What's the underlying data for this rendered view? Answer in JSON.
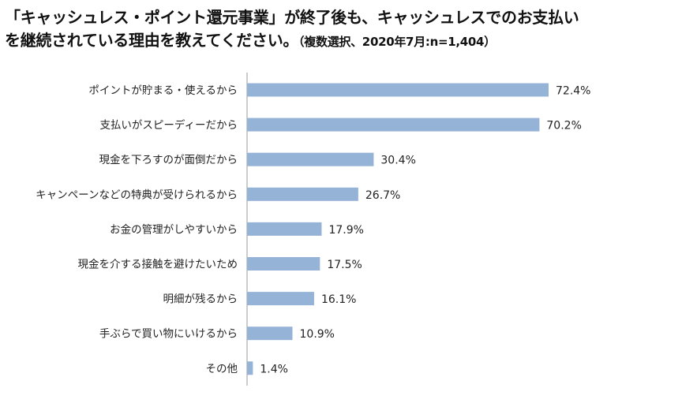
{
  "chart_data": {
    "type": "bar",
    "orientation": "horizontal",
    "title_line1": "「キャッシュレス・ポイント還元事業」が終了後も、キャッシュレスでのお支払い",
    "title_line2": "を継続されている理由を教えてください。",
    "subtitle": "（複数選択、2020年7月:n=1,404）",
    "categories": [
      "ポイントが貯まる・使えるから",
      "支払いがスピーディーだから",
      "現金を下ろすのが面倒だから",
      "キャンペーンなどの特典が受けられるから",
      "お金の管理がしやすいから",
      "現金を介する接触を避けたいため",
      "明細が残るから",
      "手ぶらで買い物にいけるから",
      "その他"
    ],
    "values": [
      72.4,
      70.2,
      30.4,
      26.7,
      17.9,
      17.5,
      16.1,
      10.9,
      1.4
    ],
    "value_labels": [
      "72.4%",
      "70.2%",
      "30.4%",
      "26.7%",
      "17.9%",
      "17.5%",
      "16.1%",
      "10.9%",
      "1.4%"
    ],
    "unit": "%",
    "xlim": [
      0,
      100
    ],
    "grid": false,
    "legend": "none",
    "bar_color": "#95B3D7"
  }
}
